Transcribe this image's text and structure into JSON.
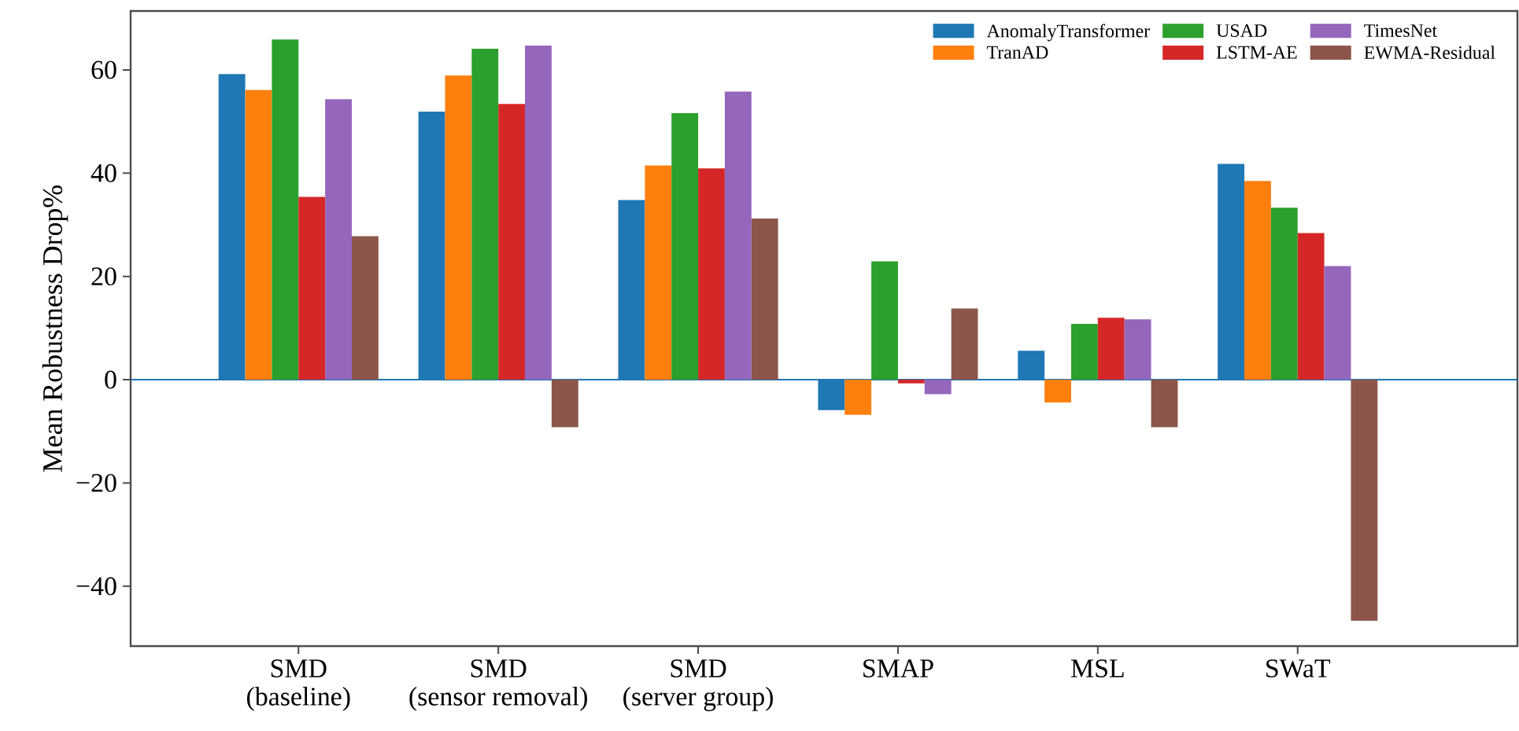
{
  "chart_data": {
    "type": "bar",
    "ylabel": "Mean Robustness Drop%",
    "categories": [
      "SMD\n(baseline)",
      "SMD\n(sensor removal)",
      "SMD\n(server group)",
      "SMAP",
      "MSL",
      "SWaT"
    ],
    "series": [
      {
        "name": "AnomalyTransformer",
        "color": "#1f77b4",
        "values": [
          59.2,
          51.9,
          34.8,
          -5.9,
          5.6,
          41.8
        ]
      },
      {
        "name": "TranAD",
        "color": "#ff7f0e",
        "values": [
          56.1,
          58.9,
          41.5,
          -6.8,
          -4.4,
          38.5
        ]
      },
      {
        "name": "USAD",
        "color": "#2ca02c",
        "values": [
          65.9,
          64.1,
          51.6,
          22.9,
          10.8,
          33.3
        ]
      },
      {
        "name": "LSTM-AE",
        "color": "#d62728",
        "values": [
          35.4,
          53.4,
          40.9,
          -0.7,
          12.0,
          28.4
        ]
      },
      {
        "name": "TimesNet",
        "color": "#9467bd",
        "values": [
          54.3,
          64.7,
          55.8,
          -2.8,
          11.7,
          22.0
        ]
      },
      {
        "name": "EWMA-Residual",
        "color": "#8c564b",
        "values": [
          27.8,
          -9.2,
          31.2,
          13.8,
          -9.2,
          -46.7
        ]
      }
    ],
    "ylim": [
      -51.6,
      71.4
    ],
    "yticks": [
      {
        "value": -40,
        "label": "−40"
      },
      {
        "value": -20,
        "label": "−20"
      },
      0,
      20,
      40,
      60
    ],
    "ref_lines": [
      {
        "axis": "y",
        "value": 0,
        "color": "#1f77b4"
      }
    ],
    "legend": "top right",
    "grid": false
  }
}
